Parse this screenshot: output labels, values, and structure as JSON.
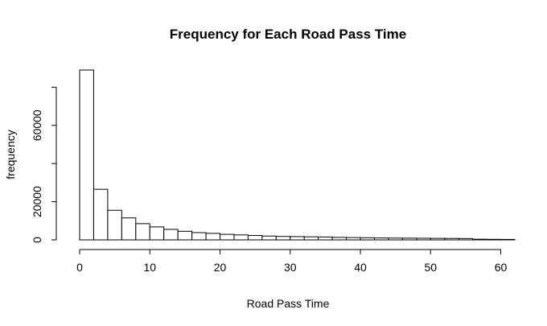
{
  "chart_data": {
    "type": "bar",
    "title": "Frequency for Each Road Pass Time",
    "xlabel": "Road Pass Time",
    "ylabel": "frequency",
    "xlim": [
      0,
      62
    ],
    "ylim": [
      0,
      89000
    ],
    "bin_width": 2,
    "xticks": [
      0,
      10,
      20,
      30,
      40,
      50,
      60
    ],
    "yticks": [
      0,
      20000,
      60000
    ],
    "bins": [
      {
        "x0": 0,
        "x1": 2,
        "count": 89000
      },
      {
        "x0": 2,
        "x1": 4,
        "count": 26500
      },
      {
        "x0": 4,
        "x1": 6,
        "count": 15500
      },
      {
        "x0": 6,
        "x1": 8,
        "count": 11500
      },
      {
        "x0": 8,
        "x1": 10,
        "count": 8500
      },
      {
        "x0": 10,
        "x1": 12,
        "count": 6800
      },
      {
        "x0": 12,
        "x1": 14,
        "count": 5500
      },
      {
        "x0": 14,
        "x1": 16,
        "count": 4500
      },
      {
        "x0": 16,
        "x1": 18,
        "count": 3800
      },
      {
        "x0": 18,
        "x1": 20,
        "count": 3400
      },
      {
        "x0": 20,
        "x1": 22,
        "count": 2900
      },
      {
        "x0": 22,
        "x1": 24,
        "count": 2600
      },
      {
        "x0": 24,
        "x1": 26,
        "count": 2300
      },
      {
        "x0": 26,
        "x1": 28,
        "count": 2000
      },
      {
        "x0": 28,
        "x1": 30,
        "count": 1800
      },
      {
        "x0": 30,
        "x1": 32,
        "count": 1700
      },
      {
        "x0": 32,
        "x1": 34,
        "count": 1600
      },
      {
        "x0": 34,
        "x1": 36,
        "count": 1500
      },
      {
        "x0": 36,
        "x1": 38,
        "count": 1300
      },
      {
        "x0": 38,
        "x1": 40,
        "count": 1200
      },
      {
        "x0": 40,
        "x1": 42,
        "count": 1100
      },
      {
        "x0": 42,
        "x1": 44,
        "count": 1000
      },
      {
        "x0": 44,
        "x1": 46,
        "count": 950
      },
      {
        "x0": 46,
        "x1": 48,
        "count": 900
      },
      {
        "x0": 48,
        "x1": 50,
        "count": 850
      },
      {
        "x0": 50,
        "x1": 52,
        "count": 800
      },
      {
        "x0": 52,
        "x1": 54,
        "count": 750
      },
      {
        "x0": 54,
        "x1": 56,
        "count": 700
      },
      {
        "x0": 56,
        "x1": 58,
        "count": 350
      },
      {
        "x0": 58,
        "x1": 60,
        "count": 300
      },
      {
        "x0": 60,
        "x1": 62,
        "count": 250
      }
    ],
    "grid": false,
    "legend": "none"
  }
}
